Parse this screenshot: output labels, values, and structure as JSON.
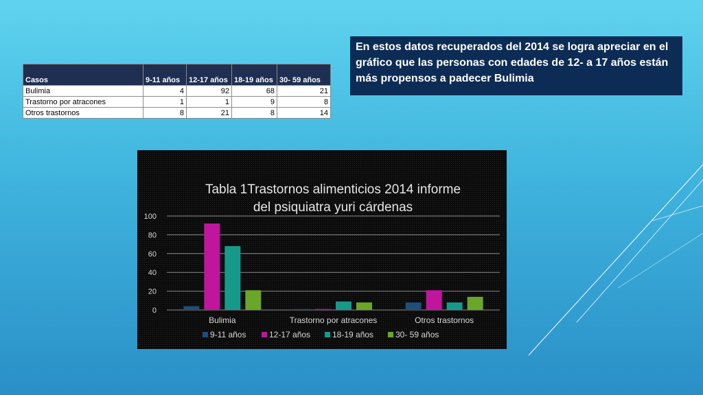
{
  "table": {
    "headers": [
      "Casos",
      "9-11 años",
      "12-17 años",
      "18-19 años",
      "30- 59 años"
    ],
    "rows": [
      {
        "label": "Bulimia",
        "values": [
          "4",
          "92",
          "68",
          "21"
        ]
      },
      {
        "label": "Trastorno por atracones",
        "values": [
          "1",
          "1",
          "9",
          "8"
        ]
      },
      {
        "label": "Otros trastornos",
        "values": [
          "8",
          "21",
          "8",
          "14"
        ]
      }
    ]
  },
  "note": {
    "text": "En estos datos recuperados del 2014 se logra apreciar en el gráfico que las personas con edades de 12- a 17 años están más propensos a padecer Bulimia"
  },
  "colors": {
    "note_bg": "#0d2c55",
    "table_header_bg": "#1e2f52",
    "series": [
      "#1f4e79",
      "#c0169e",
      "#17998a",
      "#6aa628"
    ]
  },
  "chart_data": {
    "type": "bar",
    "title_lines": [
      "Tabla 1Trastornos alimenticios 2014 informe",
      "del psiquiatra  yuri cárdenas"
    ],
    "categories": [
      "Bulimia",
      "Trastorno por atracones",
      "Otros trastornos"
    ],
    "series": [
      {
        "name": "9-11 años",
        "values": [
          4,
          1,
          8
        ]
      },
      {
        "name": "12-17 años",
        "values": [
          92,
          1,
          21
        ]
      },
      {
        "name": "18-19 años",
        "values": [
          68,
          9,
          8
        ]
      },
      {
        "name": "30- 59 años",
        "values": [
          21,
          8,
          14
        ]
      }
    ],
    "ylim": [
      0,
      100
    ],
    "yticks": [
      "0",
      "20",
      "40",
      "60",
      "80",
      "100"
    ],
    "grid": true,
    "legend": "bottom"
  }
}
